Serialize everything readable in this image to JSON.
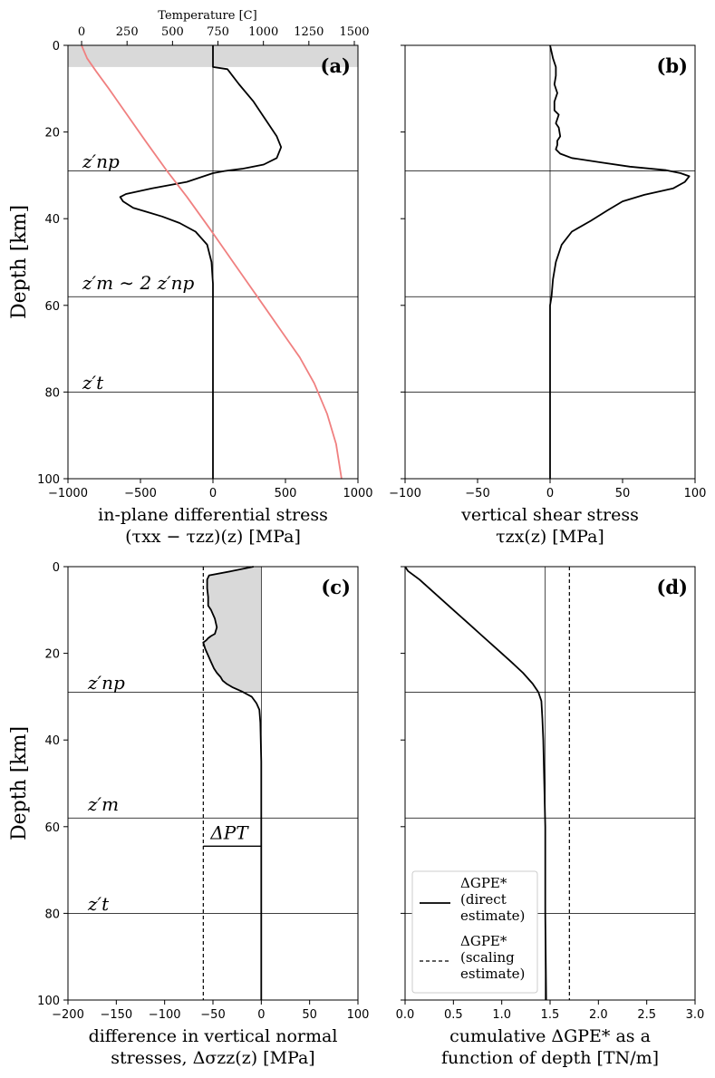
{
  "chart_data": [
    {
      "id": "a",
      "type": "line",
      "panel_label": "(a)",
      "xlabel_line1": "in-plane differential stress",
      "xlabel_line2": "(τxx − τzz)(z) [MPa]",
      "ylabel": "Depth [km]",
      "xlim": [
        -1000,
        1000
      ],
      "ylim": [
        100,
        0
      ],
      "xticks": [
        -1000,
        -500,
        0,
        500,
        1000
      ],
      "xtick_labels": [
        "−1000",
        "−500",
        "0",
        "500",
        "1000"
      ],
      "yticks": [
        0,
        20,
        40,
        60,
        80,
        100
      ],
      "ytick_labels": [
        "0",
        "20",
        "40",
        "60",
        "80",
        "100"
      ],
      "top_axis": {
        "label": "Temperature [C]",
        "xlim": [
          -75,
          1520
        ],
        "ticks": [
          0,
          250,
          500,
          750,
          1000,
          1250,
          1500
        ],
        "tick_labels": [
          "0",
          "250",
          "500",
          "750",
          "1000",
          "1250",
          "1500"
        ]
      },
      "shaded_band": {
        "y0": 0,
        "y1": 5,
        "color": "#d9d9d9"
      },
      "hlines": [
        29,
        58,
        80
      ],
      "vlines": [
        0
      ],
      "annotations": [
        {
          "text": "z′np",
          "depth": 27
        },
        {
          "text": "z′m ∼ 2 z′np",
          "depth": 55
        },
        {
          "text": "z′t",
          "depth": 78
        }
      ],
      "series": [
        {
          "kind": "stress",
          "color": "#000000",
          "x": [
            0,
            0,
            0,
            100,
            180,
            280,
            360,
            440,
            470,
            440,
            350,
            200,
            80,
            0,
            -180,
            -420,
            -600,
            -640,
            -620,
            -550,
            -450,
            -350,
            -230,
            -120,
            -40,
            -10,
            0,
            0,
            0,
            0
          ],
          "y": [
            0,
            2,
            5,
            5.5,
            9,
            13,
            17,
            21,
            23.5,
            26,
            27.5,
            28.5,
            29,
            29.5,
            31.5,
            33,
            34.3,
            35,
            36,
            37.5,
            38.5,
            39.5,
            41,
            43,
            46,
            50,
            55,
            60,
            80,
            100
          ]
        },
        {
          "kind": "temperature",
          "color": "#f08080",
          "x": [
            0,
            30,
            80,
            150,
            250,
            350,
            470,
            580,
            700,
            800,
            900,
            1000,
            1100,
            1200,
            1280,
            1350,
            1400,
            1430
          ],
          "y": [
            0,
            3,
            6,
            10,
            16,
            22,
            29,
            35,
            42,
            48,
            54,
            60,
            66,
            72,
            78,
            85,
            92,
            100
          ]
        }
      ]
    },
    {
      "id": "b",
      "type": "line",
      "panel_label": "(b)",
      "xlabel_line1": "vertical shear stress",
      "xlabel_line2": "τzx(z) [MPa]",
      "xlim": [
        -100,
        100
      ],
      "ylim": [
        100,
        0
      ],
      "xticks": [
        -100,
        -50,
        0,
        50,
        100
      ],
      "xtick_labels": [
        "−100",
        "−50",
        "0",
        "50",
        "100"
      ],
      "yticks": [
        0,
        20,
        40,
        60,
        80,
        100
      ],
      "hlines": [
        29,
        58,
        80
      ],
      "vlines": [
        0
      ],
      "series": [
        {
          "kind": "shear",
          "color": "#000000",
          "x": [
            0,
            2,
            4,
            4,
            3,
            5,
            3,
            3,
            6,
            4,
            6,
            7,
            5,
            5,
            4,
            7,
            15,
            35,
            55,
            80,
            90,
            96,
            93,
            85,
            65,
            50,
            40,
            28,
            15,
            8,
            4,
            2,
            1,
            0,
            0,
            0
          ],
          "y": [
            0,
            3,
            5,
            7,
            9,
            11,
            13,
            15,
            16,
            18,
            19,
            21,
            22,
            23,
            24,
            25,
            26,
            27,
            28,
            28.8,
            29.5,
            30.2,
            31.5,
            33,
            34.5,
            36,
            38,
            40.5,
            43,
            46,
            50,
            54,
            58,
            60,
            80,
            100
          ]
        }
      ]
    },
    {
      "id": "c",
      "type": "line",
      "panel_label": "(c)",
      "xlabel_line1": "difference in vertical normal",
      "xlabel_line2": "stresses, Δσzz(z) [MPa]",
      "ylabel": "Depth [km]",
      "xlim": [
        -200,
        100
      ],
      "ylim": [
        100,
        0
      ],
      "xticks": [
        -200,
        -150,
        -100,
        -50,
        0,
        50,
        100
      ],
      "xtick_labels": [
        "−200",
        "−150",
        "−100",
        "−50",
        "0",
        "50",
        "100"
      ],
      "yticks": [
        0,
        20,
        40,
        60,
        80,
        100
      ],
      "ytick_labels": [
        "0",
        "20",
        "40",
        "60",
        "80",
        "100"
      ],
      "hlines": [
        29,
        58,
        80
      ],
      "vlines": [
        0
      ],
      "dashed_vline": -60,
      "delta_pt": {
        "text": "ΔPT",
        "depth": 64.5,
        "x0": -60,
        "x1": 0
      },
      "annotations": [
        {
          "text": "z′np",
          "depth": 27
        },
        {
          "text": "z′m",
          "depth": 55
        },
        {
          "text": "z′t",
          "depth": 78
        }
      ],
      "series": [
        {
          "kind": "dsigma",
          "color": "#000000",
          "x": [
            -8,
            -30,
            -54,
            -56,
            -56,
            -55,
            -55,
            -52,
            -48,
            -46,
            -48,
            -52,
            -55,
            -57,
            -60,
            -58,
            -55,
            -52,
            -49,
            -46,
            -44,
            -42,
            -40,
            -36,
            -30,
            -20,
            -10,
            -5,
            -2,
            -1,
            0,
            0,
            0
          ],
          "y": [
            0,
            1,
            2,
            3,
            5,
            7,
            9,
            10,
            12,
            14,
            15.5,
            16,
            16.5,
            17,
            17.5,
            19,
            20.5,
            22,
            23.5,
            24.5,
            25,
            25.5,
            26.3,
            27,
            27.8,
            28.8,
            30,
            31.5,
            33,
            36,
            45,
            60,
            100
          ]
        }
      ]
    },
    {
      "id": "d",
      "type": "line",
      "panel_label": "(d)",
      "xlabel_line1": "cumulative ΔGPE* as a",
      "xlabel_line2": "function of depth [TN/m]",
      "xlim": [
        0,
        3
      ],
      "ylim": [
        100,
        0
      ],
      "xticks": [
        0,
        0.5,
        1.0,
        1.5,
        2.0,
        2.5,
        3.0
      ],
      "xtick_labels": [
        "0.0",
        "0.5",
        "1.0",
        "1.5",
        "2.0",
        "2.5",
        "3.0"
      ],
      "yticks": [
        0,
        20,
        40,
        60,
        80,
        100
      ],
      "hlines": [
        29,
        58,
        80
      ],
      "vlines": [
        1.45
      ],
      "dashed_vline": 1.7,
      "legend": {
        "position": "lower-left",
        "entries": [
          {
            "style": "solid",
            "lines": [
              "ΔGPE*",
              "(direct",
              "estimate)"
            ]
          },
          {
            "style": "dashed",
            "lines": [
              "ΔGPE*",
              "(scaling",
              "estimate)"
            ]
          }
        ]
      },
      "series": [
        {
          "kind": "gpe",
          "color": "#000000",
          "x": [
            0,
            0.03,
            0.15,
            0.3,
            0.5,
            0.65,
            0.8,
            0.95,
            1.1,
            1.22,
            1.32,
            1.38,
            1.41,
            1.42,
            1.43,
            1.44,
            1.45,
            1.45,
            1.46
          ],
          "y": [
            0,
            1,
            3,
            6,
            10,
            13,
            16,
            19,
            22,
            24.5,
            27,
            29,
            31,
            35,
            40,
            50,
            60,
            80,
            100
          ]
        }
      ]
    }
  ]
}
